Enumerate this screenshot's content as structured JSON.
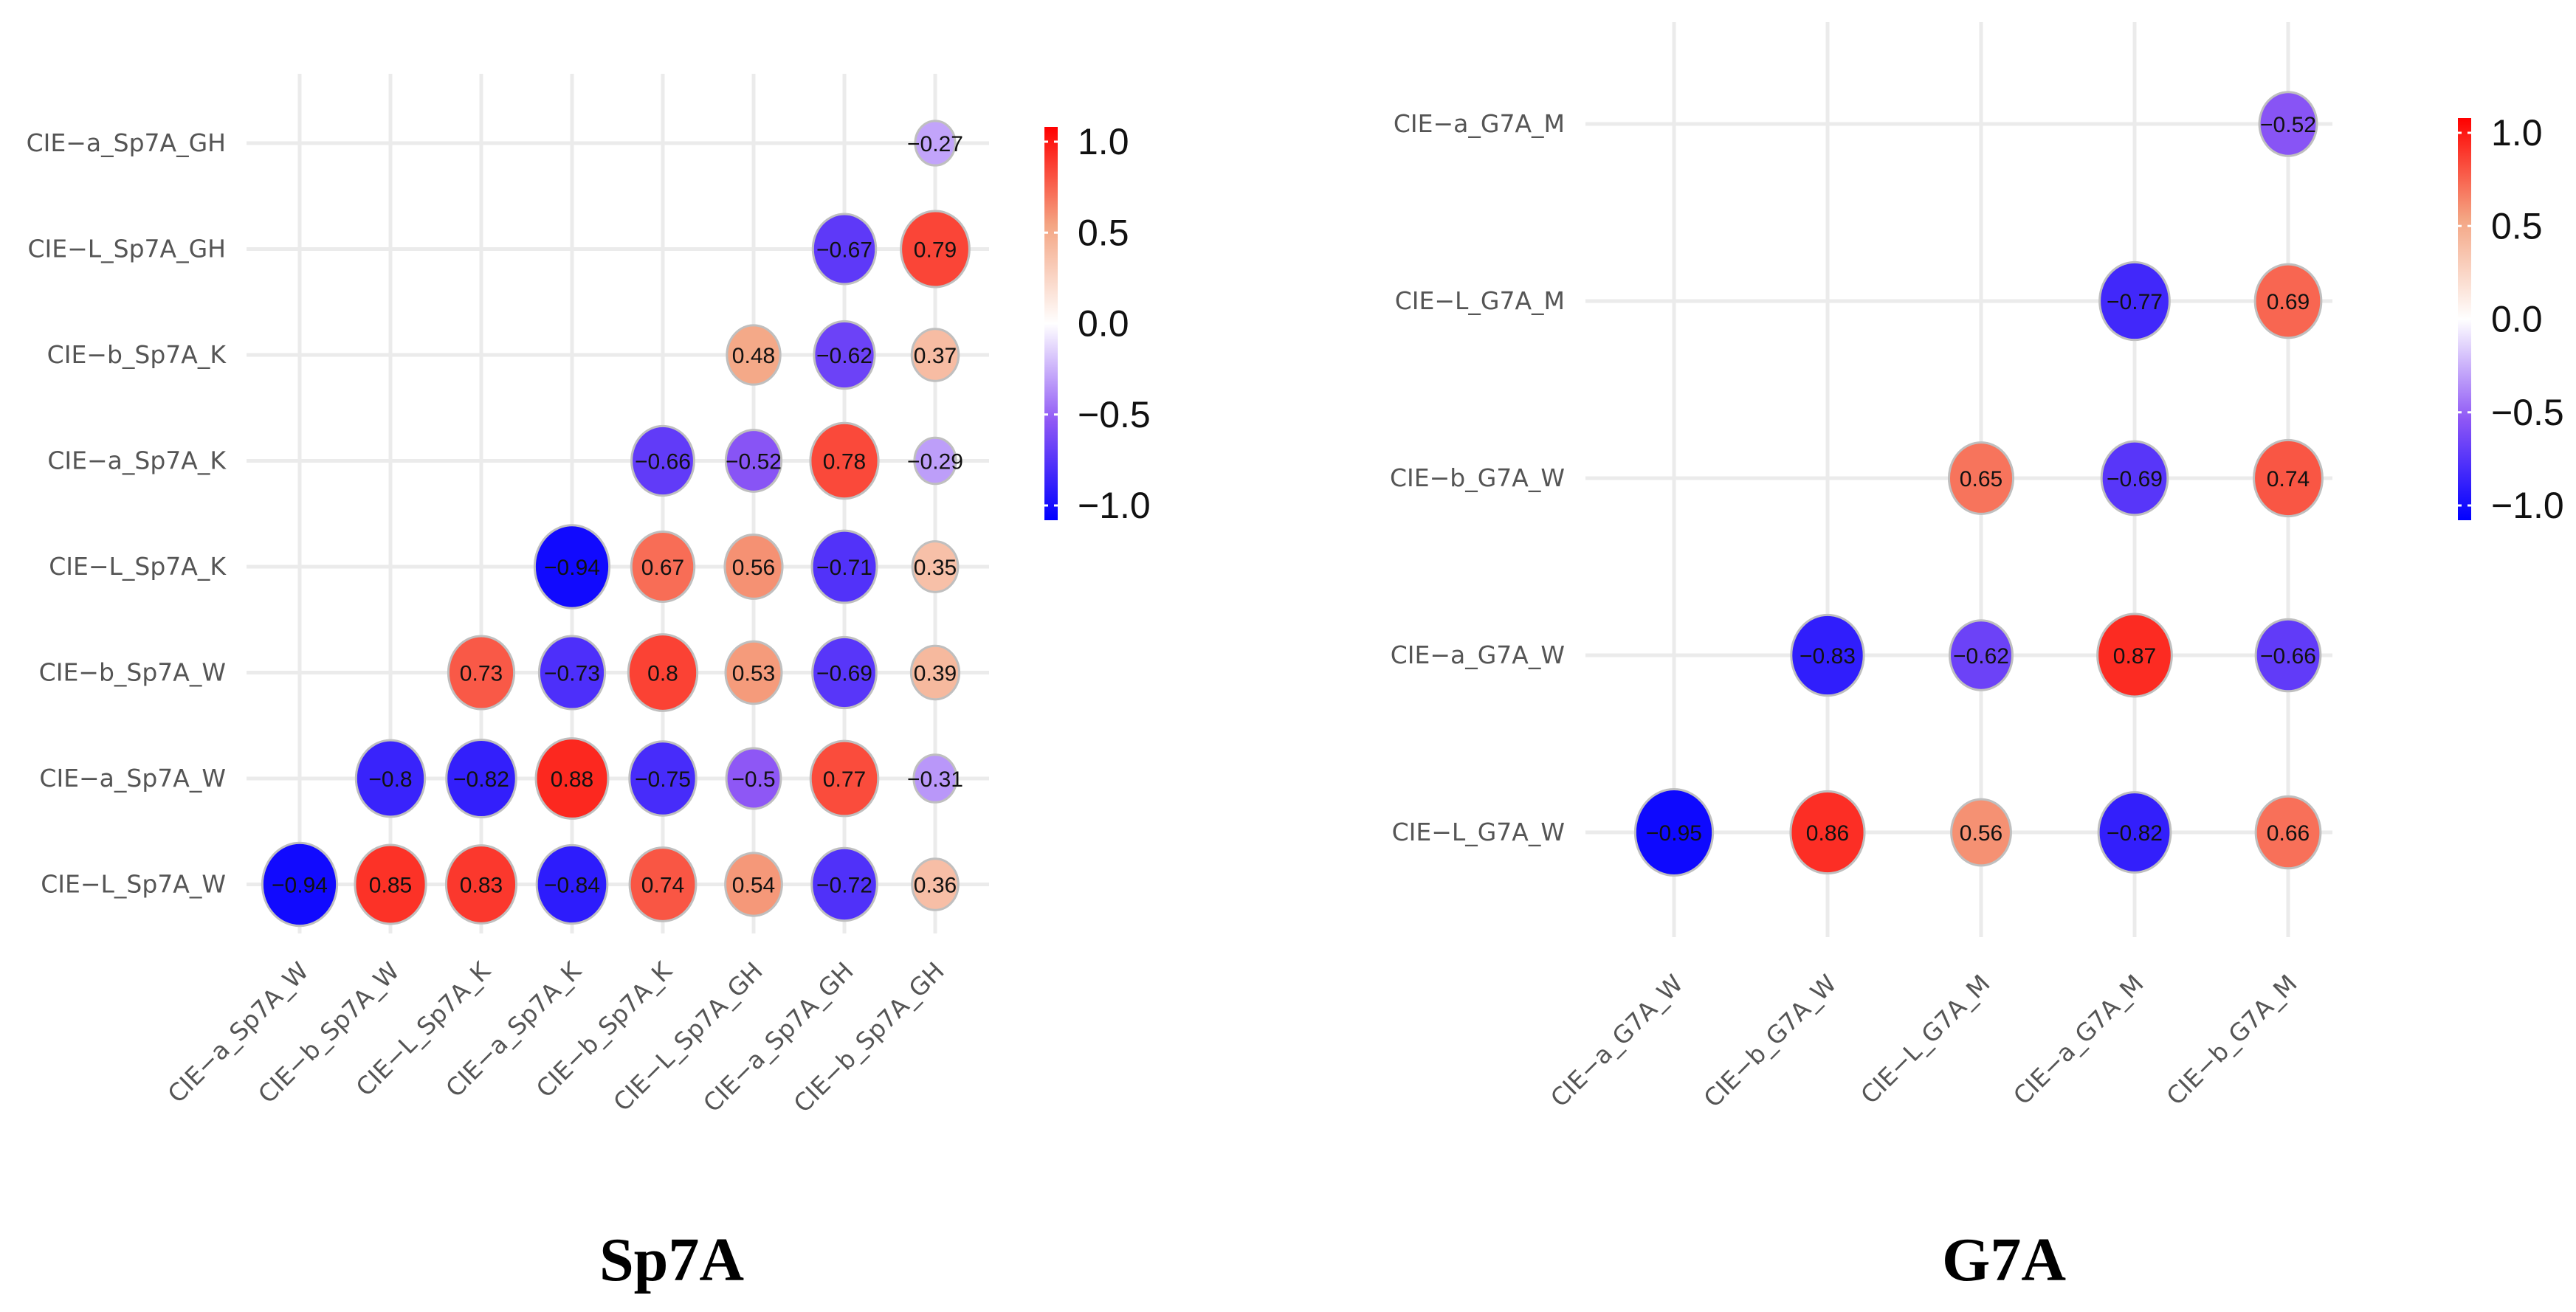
{
  "chart_data": [
    {
      "type": "heatmap",
      "title": "Sp7A",
      "x_labels": [
        "CIE−a_Sp7A_W",
        "CIE−b_Sp7A_W",
        "CIE−L_Sp7A_K",
        "CIE−a_Sp7A_K",
        "CIE−b_Sp7A_K",
        "CIE−L_Sp7A_GH",
        "CIE−a_Sp7A_GH",
        "CIE−b_Sp7A_GH"
      ],
      "y_labels": [
        "CIE−a_Sp7A_GH",
        "CIE−L_Sp7A_GH",
        "CIE−b_Sp7A_K",
        "CIE−a_Sp7A_K",
        "CIE−L_Sp7A_K",
        "CIE−b_Sp7A_W",
        "CIE−a_Sp7A_W",
        "CIE−L_Sp7A_W"
      ],
      "cells": [
        {
          "x": "CIE−b_Sp7A_GH",
          "y": "CIE−a_Sp7A_GH",
          "value": -0.27
        },
        {
          "x": "CIE−a_Sp7A_GH",
          "y": "CIE−L_Sp7A_GH",
          "value": -0.67
        },
        {
          "x": "CIE−b_Sp7A_GH",
          "y": "CIE−L_Sp7A_GH",
          "value": 0.79
        },
        {
          "x": "CIE−L_Sp7A_GH",
          "y": "CIE−b_Sp7A_K",
          "value": 0.48
        },
        {
          "x": "CIE−a_Sp7A_GH",
          "y": "CIE−b_Sp7A_K",
          "value": -0.62
        },
        {
          "x": "CIE−b_Sp7A_GH",
          "y": "CIE−b_Sp7A_K",
          "value": 0.37
        },
        {
          "x": "CIE−b_Sp7A_K",
          "y": "CIE−a_Sp7A_K",
          "value": -0.66
        },
        {
          "x": "CIE−L_Sp7A_GH",
          "y": "CIE−a_Sp7A_K",
          "value": -0.52
        },
        {
          "x": "CIE−a_Sp7A_GH",
          "y": "CIE−a_Sp7A_K",
          "value": 0.78
        },
        {
          "x": "CIE−b_Sp7A_GH",
          "y": "CIE−a_Sp7A_K",
          "value": -0.29
        },
        {
          "x": "CIE−a_Sp7A_K",
          "y": "CIE−L_Sp7A_K",
          "value": -0.94
        },
        {
          "x": "CIE−b_Sp7A_K",
          "y": "CIE−L_Sp7A_K",
          "value": 0.67
        },
        {
          "x": "CIE−L_Sp7A_GH",
          "y": "CIE−L_Sp7A_K",
          "value": 0.56
        },
        {
          "x": "CIE−a_Sp7A_GH",
          "y": "CIE−L_Sp7A_K",
          "value": -0.71
        },
        {
          "x": "CIE−b_Sp7A_GH",
          "y": "CIE−L_Sp7A_K",
          "value": 0.35
        },
        {
          "x": "CIE−L_Sp7A_K",
          "y": "CIE−b_Sp7A_W",
          "value": 0.73
        },
        {
          "x": "CIE−a_Sp7A_K",
          "y": "CIE−b_Sp7A_W",
          "value": -0.73
        },
        {
          "x": "CIE−b_Sp7A_K",
          "y": "CIE−b_Sp7A_W",
          "value": 0.8
        },
        {
          "x": "CIE−L_Sp7A_GH",
          "y": "CIE−b_Sp7A_W",
          "value": 0.53
        },
        {
          "x": "CIE−a_Sp7A_GH",
          "y": "CIE−b_Sp7A_W",
          "value": -0.69
        },
        {
          "x": "CIE−b_Sp7A_GH",
          "y": "CIE−b_Sp7A_W",
          "value": 0.39
        },
        {
          "x": "CIE−b_Sp7A_W",
          "y": "CIE−a_Sp7A_W",
          "value": -0.8
        },
        {
          "x": "CIE−L_Sp7A_K",
          "y": "CIE−a_Sp7A_W",
          "value": -0.82
        },
        {
          "x": "CIE−a_Sp7A_K",
          "y": "CIE−a_Sp7A_W",
          "value": 0.88
        },
        {
          "x": "CIE−b_Sp7A_K",
          "y": "CIE−a_Sp7A_W",
          "value": -0.75
        },
        {
          "x": "CIE−L_Sp7A_GH",
          "y": "CIE−a_Sp7A_W",
          "value": -0.5
        },
        {
          "x": "CIE−a_Sp7A_GH",
          "y": "CIE−a_Sp7A_W",
          "value": 0.77
        },
        {
          "x": "CIE−b_Sp7A_GH",
          "y": "CIE−a_Sp7A_W",
          "value": -0.31
        },
        {
          "x": "CIE−a_Sp7A_W",
          "y": "CIE−L_Sp7A_W",
          "value": -0.94
        },
        {
          "x": "CIE−b_Sp7A_W",
          "y": "CIE−L_Sp7A_W",
          "value": 0.85
        },
        {
          "x": "CIE−L_Sp7A_K",
          "y": "CIE−L_Sp7A_W",
          "value": 0.83
        },
        {
          "x": "CIE−a_Sp7A_K",
          "y": "CIE−L_Sp7A_W",
          "value": -0.84
        },
        {
          "x": "CIE−b_Sp7A_K",
          "y": "CIE−L_Sp7A_W",
          "value": 0.74
        },
        {
          "x": "CIE−L_Sp7A_GH",
          "y": "CIE−L_Sp7A_W",
          "value": 0.54
        },
        {
          "x": "CIE−a_Sp7A_GH",
          "y": "CIE−L_Sp7A_W",
          "value": -0.72
        },
        {
          "x": "CIE−b_Sp7A_GH",
          "y": "CIE−L_Sp7A_W",
          "value": 0.36
        }
      ],
      "legend": {
        "ticks": [
          "1.0",
          "0.5",
          "0.0",
          "−0.5",
          "−1.0"
        ],
        "range": [
          -1,
          1
        ],
        "placement": "right"
      }
    },
    {
      "type": "heatmap",
      "title": "G7A",
      "x_labels": [
        "CIE−a_G7A_W",
        "CIE−b_G7A_W",
        "CIE−L_G7A_M",
        "CIE−a_G7A_M",
        "CIE−b_G7A_M"
      ],
      "y_labels": [
        "CIE−a_G7A_M",
        "CIE−L_G7A_M",
        "CIE−b_G7A_W",
        "CIE−a_G7A_W",
        "CIE−L_G7A_W"
      ],
      "cells": [
        {
          "x": "CIE−b_G7A_M",
          "y": "CIE−a_G7A_M",
          "value": -0.52
        },
        {
          "x": "CIE−a_G7A_M",
          "y": "CIE−L_G7A_M",
          "value": -0.77
        },
        {
          "x": "CIE−b_G7A_M",
          "y": "CIE−L_G7A_M",
          "value": 0.69
        },
        {
          "x": "CIE−L_G7A_M",
          "y": "CIE−b_G7A_W",
          "value": 0.65
        },
        {
          "x": "CIE−a_G7A_M",
          "y": "CIE−b_G7A_W",
          "value": -0.69
        },
        {
          "x": "CIE−b_G7A_M",
          "y": "CIE−b_G7A_W",
          "value": 0.74
        },
        {
          "x": "CIE−b_G7A_W",
          "y": "CIE−a_G7A_W",
          "value": -0.83
        },
        {
          "x": "CIE−L_G7A_M",
          "y": "CIE−a_G7A_W",
          "value": -0.62
        },
        {
          "x": "CIE−a_G7A_M",
          "y": "CIE−a_G7A_W",
          "value": 0.87
        },
        {
          "x": "CIE−b_G7A_M",
          "y": "CIE−a_G7A_W",
          "value": -0.66
        },
        {
          "x": "CIE−a_G7A_W",
          "y": "CIE−L_G7A_W",
          "value": -0.95
        },
        {
          "x": "CIE−b_G7A_W",
          "y": "CIE−L_G7A_W",
          "value": 0.86
        },
        {
          "x": "CIE−L_G7A_M",
          "y": "CIE−L_G7A_W",
          "value": 0.56
        },
        {
          "x": "CIE−a_G7A_M",
          "y": "CIE−L_G7A_W",
          "value": -0.82
        },
        {
          "x": "CIE−b_G7A_M",
          "y": "CIE−L_G7A_W",
          "value": 0.66
        }
      ],
      "legend": {
        "ticks": [
          "1.0",
          "0.5",
          "0.0",
          "−0.5",
          "−1.0"
        ],
        "range": [
          -1,
          1
        ],
        "placement": "right"
      }
    }
  ],
  "colors": {
    "negative": "#0000ff",
    "mid_negative": "#8e57f5",
    "zero": "#ffffff",
    "mid_positive": "#f4a583",
    "positive": "#ff0000",
    "grid": "#ebebeb",
    "circle_border": "#bfbfbf"
  }
}
